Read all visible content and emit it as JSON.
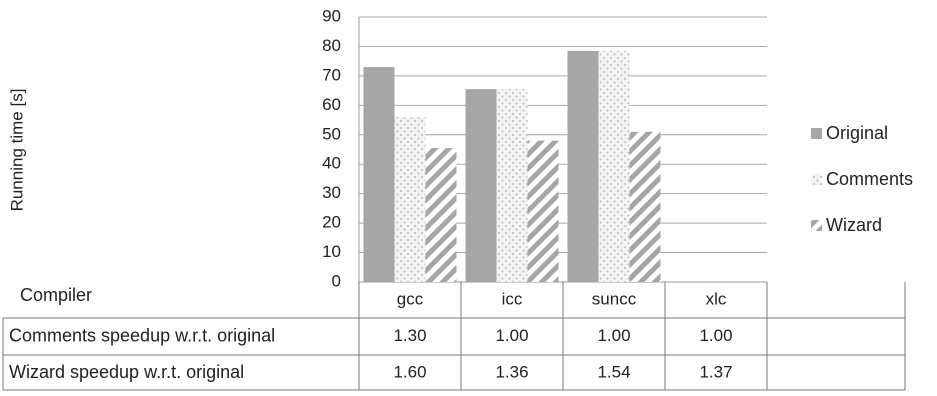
{
  "chart_data": {
    "type": "bar",
    "ylabel": "Running time [s]",
    "ylim": [
      0,
      90
    ],
    "ytick_step": 10,
    "yticks": [
      "0",
      "10",
      "20",
      "30",
      "40",
      "50",
      "60",
      "70",
      "80",
      "90"
    ],
    "grid": true,
    "legend_position": "right",
    "categories": [
      "gcc",
      "icc",
      "suncc",
      "xlc"
    ],
    "series": [
      {
        "name": "Original",
        "values": [
          73,
          65.5,
          78.5,
          null
        ],
        "pattern": "solid",
        "color": "#a6a6a6"
      },
      {
        "name": "Comments",
        "values": [
          56,
          65.5,
          78.5,
          null
        ],
        "pattern": "dotted",
        "color": "#bfbfbf"
      },
      {
        "name": "Wizard",
        "values": [
          45.5,
          48,
          51,
          null
        ],
        "pattern": "diagonal",
        "color": "#a6a6a6"
      }
    ],
    "table": {
      "header_label": "Compiler",
      "rows": [
        {
          "label": "Comments speedup w.r.t. original",
          "values": [
            "1.30",
            "1.00",
            "1.00",
            "1.00"
          ]
        },
        {
          "label": "Wizard speedup w.r.t. original",
          "values": [
            "1.60",
            "1.36",
            "1.54",
            "1.37"
          ]
        }
      ]
    }
  }
}
